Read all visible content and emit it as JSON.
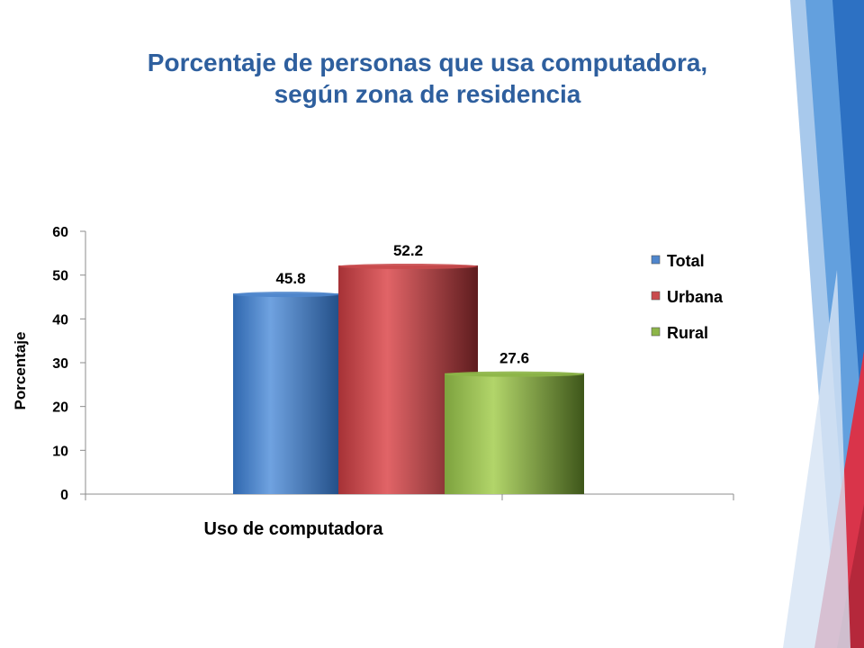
{
  "title_line1": "Porcentaje de personas que usa computadora,",
  "title_line2": "según zona de residencia",
  "colors": {
    "title": "#2E5F9E",
    "total": "#4F86CC",
    "urbana": "#C94A4D",
    "rural": "#8DB548"
  },
  "chart_data": {
    "type": "bar",
    "categories": [
      "Uso de computadora"
    ],
    "series": [
      {
        "name": "Total",
        "values": [
          45.8
        ],
        "color": "#4F86CC"
      },
      {
        "name": "Urbana",
        "values": [
          52.2
        ],
        "color": "#C94A4D"
      },
      {
        "name": "Rural",
        "values": [
          27.6
        ],
        "color": "#8DB548"
      }
    ],
    "data_labels": [
      "45.8",
      "52.2",
      "27.6"
    ],
    "xlabel": "Uso de computadora",
    "ylabel": "Porcentaje",
    "ylim": [
      0,
      60
    ],
    "yticks": [
      "0",
      "10",
      "20",
      "30",
      "40",
      "50",
      "60"
    ],
    "legend_position": "right",
    "grid": false
  }
}
